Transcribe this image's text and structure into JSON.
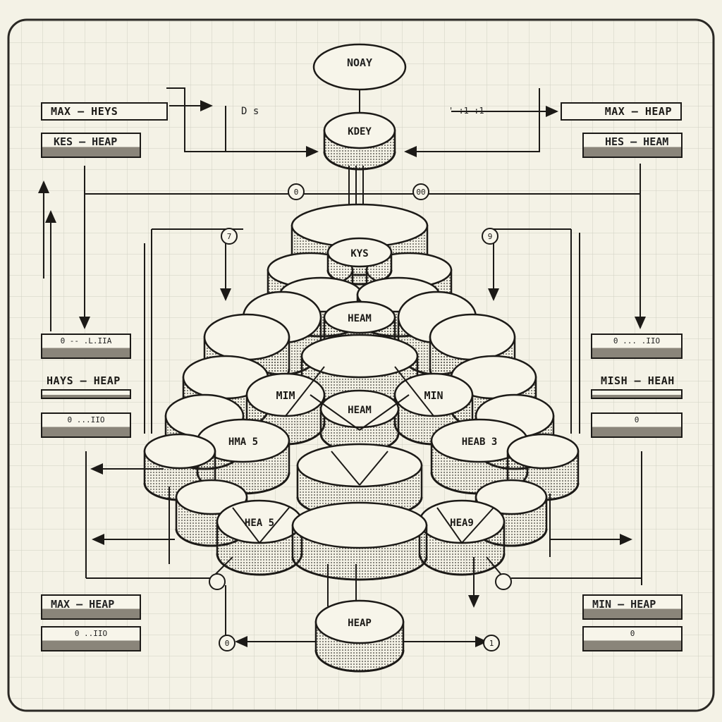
{
  "nodes": {
    "top": "NOAY",
    "key": "KDEY",
    "keys": "KYS",
    "heam_upper": "HEAM",
    "min_left": "MIM",
    "min_right": "MIN",
    "heam_center": "HEAM",
    "hma5": "HMA 5",
    "heab3": "HEAB 3",
    "hea5": "HEA 5",
    "hea9": "HEA9",
    "heap_bottom": "HEAP"
  },
  "labels": {
    "tl1": "MAX – HEYS",
    "tl2": "KES – HEAP",
    "tr1": "MAX – HEAP",
    "tr2": "HES – HEAM",
    "ml1": "HAYS – HEAP",
    "mr1": "MISH – HEAH",
    "bl1": "MAX – HEAP",
    "br1": "MIN – HEAP"
  },
  "bars": {
    "ml_top": "0   -- .L.IIA",
    "ml_bot": "0      ...IIO",
    "mr_top": "0     ... .IIO",
    "mr_bot": "0",
    "bl_bot": "0     ..IIO",
    "br_bot": "0"
  },
  "annotations": {
    "top_left": "D s",
    "top_right": "' :1 :1",
    "circle_a": "0",
    "circle_b": "00",
    "circle_c": "7",
    "circle_d": "9",
    "circle_e": "0",
    "circle_f": "1"
  }
}
